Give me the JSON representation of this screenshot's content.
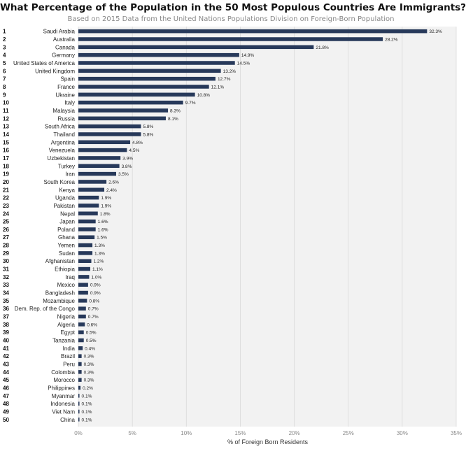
{
  "chart_data": {
    "type": "bar",
    "orientation": "horizontal",
    "title": "What Percentage of the Population in the 50 Most Populous Countries Are Immigrants?",
    "subtitle": "Based on 2015 Data from the United Nations Populations Division on Foreign-Born Population",
    "xlabel": "% of Foreign Born Residents",
    "ylabel": "",
    "xlim": [
      0,
      35
    ],
    "xticks": [
      "0%",
      "5%",
      "10%",
      "15%",
      "20%",
      "25%",
      "30%",
      "35%"
    ],
    "grid": true,
    "bar_color": "#27395a",
    "ranks": [
      "1",
      "2",
      "3",
      "4",
      "5",
      "6",
      "7",
      "8",
      "9",
      "10",
      "11",
      "12",
      "13",
      "14",
      "15",
      "16",
      "17",
      "18",
      "19",
      "20",
      "21",
      "22",
      "23",
      "24",
      "25",
      "26",
      "27",
      "28",
      "29",
      "30",
      "31",
      "32",
      "33",
      "34",
      "35",
      "36",
      "37",
      "38",
      "39",
      "40",
      "41",
      "42",
      "43",
      "44",
      "45",
      "46",
      "47",
      "48",
      "49",
      "50"
    ],
    "categories": [
      "Saudi Arabia",
      "Australia",
      "Canada",
      "Germany",
      "United States of America",
      "United Kingdom",
      "Spain",
      "France",
      "Ukraine",
      "Italy",
      "Malaysia",
      "Russia",
      "South Africa",
      "Thailand",
      "Argentina",
      "Venezuela",
      "Uzbekistan",
      "Turkey",
      "Iran",
      "South Korea",
      "Kenya",
      "Uganda",
      "Pakistan",
      "Nepal",
      "Japan",
      "Poland",
      "Ghana",
      "Yemen",
      "Sudan",
      "Afghanistan",
      "Ethiopia",
      "Iraq",
      "Mexico",
      "Bangladesh",
      "Mozambique",
      "Dem. Rep. of the Congo",
      "Nigeria",
      "Algeria",
      "Egypt",
      "Tanzania",
      "India",
      "Brazil",
      "Peru",
      "Colombia",
      "Morocco",
      "Philippines",
      "Myanmar",
      "Indonesia",
      "Viet Nam",
      "China"
    ],
    "values": [
      32.3,
      28.2,
      21.8,
      14.9,
      14.5,
      13.2,
      12.7,
      12.1,
      10.8,
      9.7,
      8.3,
      8.1,
      5.8,
      5.8,
      4.8,
      4.5,
      3.9,
      3.8,
      3.5,
      2.6,
      2.4,
      1.9,
      1.9,
      1.8,
      1.6,
      1.6,
      1.5,
      1.3,
      1.3,
      1.2,
      1.1,
      1.0,
      0.9,
      0.9,
      0.8,
      0.7,
      0.7,
      0.6,
      0.5,
      0.5,
      0.4,
      0.3,
      0.3,
      0.3,
      0.3,
      0.2,
      0.1,
      0.1,
      0.1,
      0.1
    ],
    "value_labels": [
      "32.3%",
      "28.2%",
      "21.8%",
      "14.9%",
      "14.5%",
      "13.2%",
      "12.7%",
      "12.1%",
      "10.8%",
      "9.7%",
      "8.3%",
      "8.1%",
      "5.8%",
      "5.8%",
      "4.8%",
      "4.5%",
      "3.9%",
      "3.8%",
      "3.5%",
      "2.6%",
      "2.4%",
      "1.9%",
      "1.9%",
      "1.8%",
      "1.6%",
      "1.6%",
      "1.5%",
      "1.3%",
      "1.3%",
      "1.2%",
      "1.1%",
      "1.0%",
      "0.9%",
      "0.9%",
      "0.8%",
      "0.7%",
      "0.7%",
      "0.6%",
      "0.5%",
      "0.5%",
      "0.4%",
      "0.3%",
      "0.3%",
      "0.3%",
      "0.3%",
      "0.2%",
      "0.1%",
      "0.1%",
      "0.1%",
      "0.1%"
    ]
  }
}
